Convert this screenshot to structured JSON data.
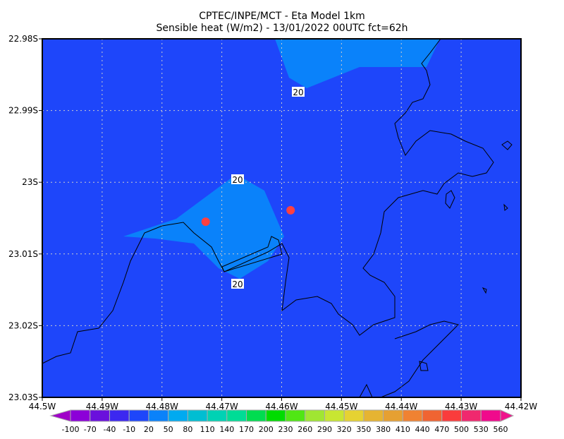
{
  "title": {
    "line1": "CPTEC/INPE/MCT -  Eta Model 1km",
    "line2": "Sensible heat (W/m2) - 13/01/2022 00UTC fct=62h"
  },
  "map": {
    "lon_range": [
      -44.5,
      -44.42
    ],
    "lat_range": [
      -22.98,
      -23.03
    ],
    "x_ticks": [
      "44.5W",
      "44.49W",
      "44.48W",
      "44.47W",
      "44.46W",
      "44.45W",
      "44.44W",
      "44.43W",
      "44.42W"
    ],
    "y_ticks": [
      "22.98S",
      "22.99S",
      "23S",
      "23.01S",
      "23.02S",
      "23.03S"
    ],
    "background_fill": "#1e46fa",
    "contour_fill": "#0a82fa",
    "contour_labels": [
      "20",
      "20",
      "20"
    ],
    "markers": [
      {
        "lon": -44.4727,
        "lat": -23.0055,
        "color": "#ff4040"
      },
      {
        "lon": -44.4585,
        "lat": -23.0039,
        "color": "#ff4040"
      }
    ],
    "grid": "dotted"
  },
  "colorbar": {
    "labels": [
      "-100",
      "-70",
      "-40",
      "-10",
      "20",
      "50",
      "80",
      "110",
      "140",
      "170",
      "200",
      "230",
      "260",
      "290",
      "320",
      "350",
      "380",
      "410",
      "440",
      "470",
      "500",
      "530",
      "560"
    ],
    "colors": [
      "#8c00d8",
      "#6a10dc",
      "#3c28f0",
      "#1e46fa",
      "#0a82fa",
      "#00aaf0",
      "#00bed2",
      "#00d2b4",
      "#00dc96",
      "#00dc50",
      "#00dc00",
      "#50e614",
      "#a0e632",
      "#c8e632",
      "#e6d232",
      "#e6b432",
      "#e6a032",
      "#f08232",
      "#f06432",
      "#fa3c3c",
      "#f0286e",
      "#f00a8c"
    ],
    "under_color": "#a000c8",
    "over_color": "#f0148c"
  }
}
